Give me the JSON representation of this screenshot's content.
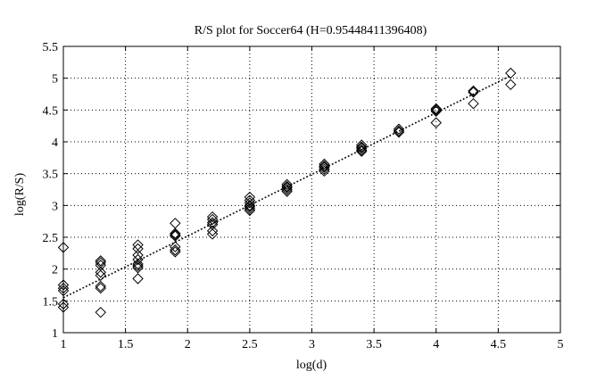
{
  "chart_data": {
    "type": "scatter",
    "title": "R/S plot for Soccer64 (H=0.95448411396408)",
    "xlabel": "log(d)",
    "ylabel": "log(R/S)",
    "xlim": [
      1,
      5
    ],
    "ylim": [
      1,
      5.5
    ],
    "xticks": [
      "1",
      "1.5",
      "2",
      "2.5",
      "3",
      "3.5",
      "4",
      "4.5",
      "5"
    ],
    "yticks": [
      "1",
      "1.5",
      "2",
      "2.5",
      "3",
      "3.5",
      "4",
      "4.5",
      "5",
      "5.5"
    ],
    "grid": true,
    "marker": "diamond",
    "colors": {
      "marker": "#000000",
      "grid": "#000000",
      "fit_line": "#000000"
    },
    "series": [
      {
        "points": [
          [
            1.0,
            2.34
          ],
          [
            1.0,
            1.75
          ],
          [
            1.0,
            1.7
          ],
          [
            1.0,
            1.66
          ],
          [
            1.0,
            1.45
          ],
          [
            1.0,
            1.4
          ],
          [
            1.3,
            2.13
          ],
          [
            1.3,
            2.1
          ],
          [
            1.3,
            2.06
          ],
          [
            1.3,
            1.95
          ],
          [
            1.3,
            1.9
          ],
          [
            1.3,
            1.73
          ],
          [
            1.3,
            1.7
          ],
          [
            1.3,
            1.32
          ],
          [
            1.6,
            2.38
          ],
          [
            1.6,
            2.32
          ],
          [
            1.6,
            2.22
          ],
          [
            1.6,
            2.15
          ],
          [
            1.6,
            2.08
          ],
          [
            1.6,
            2.05
          ],
          [
            1.6,
            2.02
          ],
          [
            1.6,
            1.85
          ],
          [
            1.9,
            2.72
          ],
          [
            1.9,
            2.56
          ],
          [
            1.9,
            2.54
          ],
          [
            1.9,
            2.52
          ],
          [
            1.9,
            2.35
          ],
          [
            1.9,
            2.3
          ],
          [
            1.9,
            2.27
          ],
          [
            2.2,
            2.82
          ],
          [
            2.2,
            2.78
          ],
          [
            2.2,
            2.73
          ],
          [
            2.2,
            2.7
          ],
          [
            2.2,
            2.6
          ],
          [
            2.2,
            2.55
          ],
          [
            2.5,
            3.13
          ],
          [
            2.5,
            3.08
          ],
          [
            2.5,
            3.04
          ],
          [
            2.5,
            3.0
          ],
          [
            2.5,
            2.98
          ],
          [
            2.5,
            2.95
          ],
          [
            2.5,
            2.92
          ],
          [
            2.8,
            3.33
          ],
          [
            2.8,
            3.3
          ],
          [
            2.8,
            3.28
          ],
          [
            2.8,
            3.25
          ],
          [
            2.8,
            3.22
          ],
          [
            3.1,
            3.65
          ],
          [
            3.1,
            3.62
          ],
          [
            3.1,
            3.6
          ],
          [
            3.1,
            3.57
          ],
          [
            3.1,
            3.54
          ],
          [
            3.4,
            3.95
          ],
          [
            3.4,
            3.92
          ],
          [
            3.4,
            3.9
          ],
          [
            3.4,
            3.87
          ],
          [
            3.4,
            3.85
          ],
          [
            3.7,
            4.2
          ],
          [
            3.7,
            4.17
          ],
          [
            3.7,
            4.15
          ],
          [
            4.0,
            4.52
          ],
          [
            4.0,
            4.5
          ],
          [
            4.0,
            4.48
          ],
          [
            4.0,
            4.3
          ],
          [
            4.3,
            4.8
          ],
          [
            4.3,
            4.78
          ],
          [
            4.3,
            4.6
          ],
          [
            4.6,
            5.08
          ],
          [
            4.6,
            4.9
          ]
        ]
      }
    ],
    "fit_line": {
      "x": [
        1.0,
        4.6
      ],
      "y": [
        1.55,
        5.04
      ]
    }
  }
}
